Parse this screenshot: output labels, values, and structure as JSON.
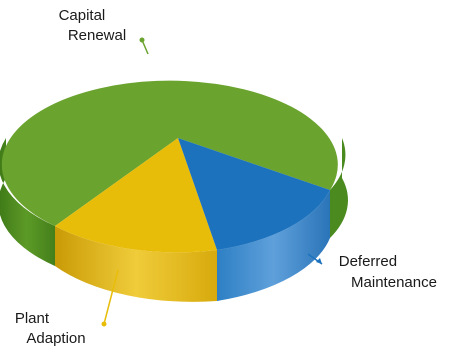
{
  "chart_data": {
    "type": "pie",
    "title": "",
    "style": "3d",
    "slices": [
      {
        "label": "Capital Renewal",
        "label_lines": [
          "Capital",
          "Renewal"
        ],
        "percent": 68,
        "color": "#6aa32e"
      },
      {
        "label": "Deferred Maintenance",
        "label_lines": [
          "Deferred",
          "Maintenance"
        ],
        "percent": 17,
        "color": "#1c72bd"
      },
      {
        "label": "Plant Adaption",
        "label_lines": [
          "Plant",
          "Adaption"
        ],
        "percent": 15,
        "color": "#e8bd0a"
      }
    ],
    "legend": "none"
  }
}
